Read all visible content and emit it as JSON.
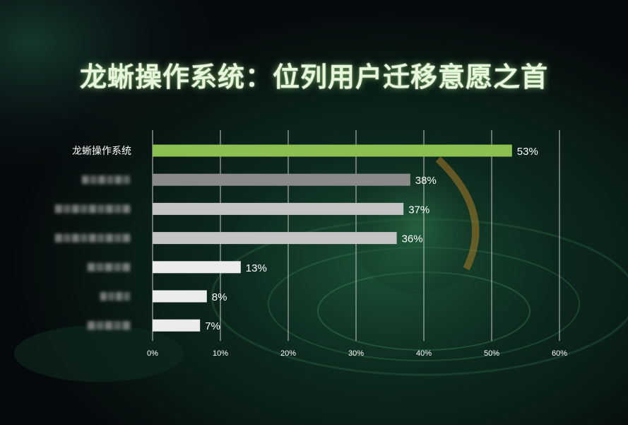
{
  "title": "龙蜥操作系统：位列用户迁移意愿之首",
  "colors": {
    "highlight": "#8cc152",
    "bar_dark": "#8a8a8a",
    "bar_mid": "#c4c4c4",
    "bar_light": "#ececec",
    "grid": "#d8d8d8",
    "text": "#ffffff"
  },
  "chart_data": {
    "type": "bar",
    "orientation": "horizontal",
    "categories": [
      "龙蜥操作系统",
      "",
      "",
      "",
      "",
      "",
      ""
    ],
    "category_visibility": [
      "visible",
      "blurred",
      "blurred",
      "blurred",
      "blurred",
      "blurred",
      "blurred"
    ],
    "values": [
      53,
      38,
      37,
      36,
      13,
      8,
      7
    ],
    "value_labels": [
      "53%",
      "38%",
      "37%",
      "36%",
      "13%",
      "8%",
      "7%"
    ],
    "bar_colors": [
      "#8cc152",
      "#8a8a8a",
      "#c4c4c4",
      "#c4c4c4",
      "#ececec",
      "#ececec",
      "#ececec"
    ],
    "xlim": [
      0,
      60
    ],
    "ticks": [
      0,
      10,
      20,
      30,
      40,
      50,
      60
    ],
    "tick_labels": [
      "0%",
      "10%",
      "20%",
      "30%",
      "40%",
      "50%",
      "60%"
    ],
    "grid": true
  }
}
